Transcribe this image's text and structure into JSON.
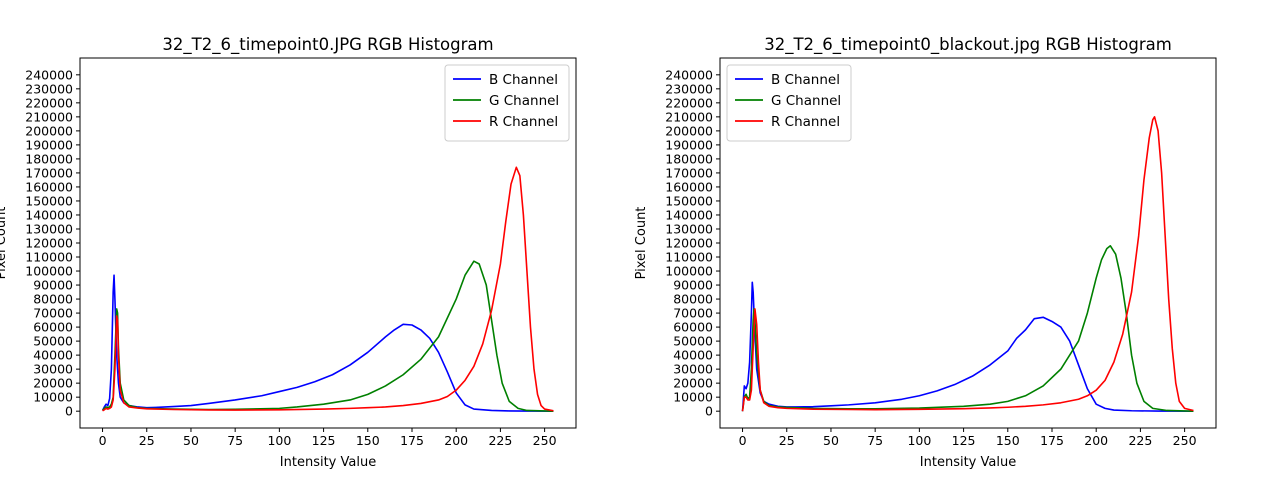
{
  "chart_data": [
    {
      "type": "line",
      "title": "32_T2_6_timepoint0.JPG RGB Histogram",
      "xlabel": "Intensity Value",
      "ylabel": "Pixel Count",
      "xlim": [
        -12.75,
        267.75
      ],
      "ylim": [
        -12000,
        252000
      ],
      "xticks": [
        0,
        25,
        50,
        75,
        100,
        125,
        150,
        175,
        200,
        225,
        250
      ],
      "yticks": [
        0,
        10000,
        20000,
        30000,
        40000,
        50000,
        60000,
        70000,
        80000,
        90000,
        100000,
        110000,
        120000,
        130000,
        140000,
        150000,
        160000,
        170000,
        180000,
        190000,
        200000,
        210000,
        220000,
        230000,
        240000
      ],
      "grid": false,
      "legend": "top-right",
      "series": [
        {
          "name": "B Channel",
          "color": "#0000ff",
          "points": [
            [
              0,
              500
            ],
            [
              1,
              3000
            ],
            [
              2,
              5000
            ],
            [
              3,
              4000
            ],
            [
              4,
              9000
            ],
            [
              5,
              30000
            ],
            [
              6,
              85000
            ],
            [
              6.5,
              97000
            ],
            [
              7,
              80000
            ],
            [
              8,
              40000
            ],
            [
              9,
              20000
            ],
            [
              10,
              10000
            ],
            [
              12,
              6000
            ],
            [
              15,
              4000
            ],
            [
              20,
              3000
            ],
            [
              25,
              2500
            ],
            [
              30,
              2700
            ],
            [
              40,
              3300
            ],
            [
              50,
              4000
            ],
            [
              60,
              5500
            ],
            [
              75,
              8000
            ],
            [
              90,
              11000
            ],
            [
              100,
              14000
            ],
            [
              110,
              17000
            ],
            [
              120,
              21000
            ],
            [
              130,
              26000
            ],
            [
              140,
              33000
            ],
            [
              150,
              42000
            ],
            [
              160,
              53000
            ],
            [
              165,
              58000
            ],
            [
              170,
              62000
            ],
            [
              175,
              61500
            ],
            [
              180,
              58000
            ],
            [
              185,
              52000
            ],
            [
              190,
              42000
            ],
            [
              195,
              28000
            ],
            [
              200,
              13000
            ],
            [
              205,
              4500
            ],
            [
              210,
              1500
            ],
            [
              220,
              500
            ],
            [
              230,
              200
            ],
            [
              240,
              100
            ],
            [
              255,
              0
            ]
          ]
        },
        {
          "name": "G Channel",
          "color": "#008000",
          "points": [
            [
              0,
              500
            ],
            [
              1,
              2000
            ],
            [
              2,
              3000
            ],
            [
              3,
              2500
            ],
            [
              4,
              3000
            ],
            [
              5,
              5000
            ],
            [
              6,
              10000
            ],
            [
              7,
              40000
            ],
            [
              8,
              73000
            ],
            [
              8.5,
              70000
            ],
            [
              9,
              45000
            ],
            [
              10,
              20000
            ],
            [
              12,
              8000
            ],
            [
              15,
              4000
            ],
            [
              20,
              2500
            ],
            [
              25,
              2000
            ],
            [
              40,
              1500
            ],
            [
              60,
              1200
            ],
            [
              75,
              1300
            ],
            [
              100,
              2000
            ],
            [
              110,
              3000
            ],
            [
              125,
              5000
            ],
            [
              140,
              8000
            ],
            [
              150,
              12000
            ],
            [
              160,
              18000
            ],
            [
              170,
              26000
            ],
            [
              180,
              37000
            ],
            [
              190,
              53000
            ],
            [
              200,
              80000
            ],
            [
              205,
              97000
            ],
            [
              210,
              107000
            ],
            [
              213,
              105000
            ],
            [
              217,
              90000
            ],
            [
              220,
              65000
            ],
            [
              223,
              40000
            ],
            [
              226,
              20000
            ],
            [
              230,
              7000
            ],
            [
              235,
              2000
            ],
            [
              240,
              500
            ],
            [
              255,
              0
            ]
          ]
        },
        {
          "name": "R Channel",
          "color": "#ff0000",
          "points": [
            [
              0,
              300
            ],
            [
              1,
              1000
            ],
            [
              2,
              2000
            ],
            [
              3,
              1500
            ],
            [
              4,
              2000
            ],
            [
              5,
              3000
            ],
            [
              6,
              8000
            ],
            [
              7,
              30000
            ],
            [
              8,
              68000
            ],
            [
              8.5,
              65000
            ],
            [
              9,
              40000
            ],
            [
              10,
              15000
            ],
            [
              12,
              6000
            ],
            [
              15,
              3000
            ],
            [
              20,
              2200
            ],
            [
              25,
              1700
            ],
            [
              40,
              1200
            ],
            [
              60,
              900
            ],
            [
              75,
              800
            ],
            [
              100,
              1000
            ],
            [
              125,
              1500
            ],
            [
              140,
              2000
            ],
            [
              150,
              2500
            ],
            [
              160,
              3000
            ],
            [
              170,
              4000
            ],
            [
              180,
              5500
            ],
            [
              190,
              8000
            ],
            [
              195,
              10500
            ],
            [
              200,
              15000
            ],
            [
              205,
              22000
            ],
            [
              210,
              32000
            ],
            [
              215,
              48000
            ],
            [
              220,
              72000
            ],
            [
              225,
              105000
            ],
            [
              228,
              135000
            ],
            [
              231,
              162000
            ],
            [
              234,
              174000
            ],
            [
              236,
              168000
            ],
            [
              238,
              140000
            ],
            [
              240,
              100000
            ],
            [
              242,
              60000
            ],
            [
              244,
              30000
            ],
            [
              246,
              12000
            ],
            [
              248,
              4000
            ],
            [
              250,
              1500
            ],
            [
              255,
              300
            ]
          ]
        }
      ]
    },
    {
      "type": "line",
      "title": "32_T2_6_timepoint0_blackout.jpg RGB Histogram",
      "xlabel": "Intensity Value",
      "ylabel": "Pixel Count",
      "xlim": [
        -12.75,
        267.75
      ],
      "ylim": [
        -12000,
        252000
      ],
      "xticks": [
        0,
        25,
        50,
        75,
        100,
        125,
        150,
        175,
        200,
        225,
        250
      ],
      "yticks": [
        0,
        10000,
        20000,
        30000,
        40000,
        50000,
        60000,
        70000,
        80000,
        90000,
        100000,
        110000,
        120000,
        130000,
        140000,
        150000,
        160000,
        170000,
        180000,
        190000,
        200000,
        210000,
        220000,
        230000,
        240000
      ],
      "grid": false,
      "legend": "top-left",
      "series": [
        {
          "name": "B Channel",
          "color": "#0000ff",
          "points": [
            [
              0,
              0
            ],
            [
              1,
              18000
            ],
            [
              2,
              16000
            ],
            [
              3,
              20000
            ],
            [
              4,
              35000
            ],
            [
              5,
              70000
            ],
            [
              5.5,
              92000
            ],
            [
              6,
              85000
            ],
            [
              7,
              55000
            ],
            [
              8,
              30000
            ],
            [
              10,
              13000
            ],
            [
              12,
              7000
            ],
            [
              15,
              5000
            ],
            [
              20,
              3500
            ],
            [
              25,
              3000
            ],
            [
              30,
              3000
            ],
            [
              40,
              3200
            ],
            [
              50,
              3800
            ],
            [
              60,
              4500
            ],
            [
              75,
              6000
            ],
            [
              90,
              8500
            ],
            [
              100,
              11000
            ],
            [
              110,
              14500
            ],
            [
              120,
              19000
            ],
            [
              130,
              25000
            ],
            [
              140,
              33000
            ],
            [
              150,
              43000
            ],
            [
              155,
              52000
            ],
            [
              160,
              58000
            ],
            [
              165,
              66000
            ],
            [
              170,
              67000
            ],
            [
              175,
              64000
            ],
            [
              180,
              60000
            ],
            [
              185,
              50000
            ],
            [
              190,
              33000
            ],
            [
              195,
              16000
            ],
            [
              200,
              5000
            ],
            [
              205,
              2000
            ],
            [
              210,
              800
            ],
            [
              220,
              300
            ],
            [
              235,
              100
            ],
            [
              255,
              0
            ]
          ]
        },
        {
          "name": "G Channel",
          "color": "#008000",
          "points": [
            [
              0,
              0
            ],
            [
              1,
              10000
            ],
            [
              2,
              12000
            ],
            [
              3,
              9000
            ],
            [
              4,
              10000
            ],
            [
              5,
              30000
            ],
            [
              6,
              65000
            ],
            [
              6.5,
              73000
            ],
            [
              7,
              65000
            ],
            [
              8,
              40000
            ],
            [
              10,
              15000
            ],
            [
              12,
              7000
            ],
            [
              15,
              4000
            ],
            [
              20,
              3000
            ],
            [
              25,
              2700
            ],
            [
              40,
              2000
            ],
            [
              60,
              1700
            ],
            [
              75,
              1700
            ],
            [
              100,
              2200
            ],
            [
              125,
              3500
            ],
            [
              140,
              5000
            ],
            [
              150,
              7000
            ],
            [
              160,
              11000
            ],
            [
              170,
              18000
            ],
            [
              180,
              30000
            ],
            [
              190,
              50000
            ],
            [
              195,
              70000
            ],
            [
              200,
              95000
            ],
            [
              203,
              108000
            ],
            [
              206,
              116000
            ],
            [
              208,
              118000
            ],
            [
              211,
              112000
            ],
            [
              214,
              95000
            ],
            [
              217,
              70000
            ],
            [
              220,
              40000
            ],
            [
              223,
              20000
            ],
            [
              227,
              7000
            ],
            [
              232,
              2000
            ],
            [
              240,
              500
            ],
            [
              255,
              0
            ]
          ]
        },
        {
          "name": "R Channel",
          "color": "#ff0000",
          "points": [
            [
              0,
              0
            ],
            [
              1,
              10000
            ],
            [
              2,
              10000
            ],
            [
              3,
              8000
            ],
            [
              4,
              8000
            ],
            [
              5,
              15000
            ],
            [
              6,
              45000
            ],
            [
              7,
              73000
            ],
            [
              8,
              62000
            ],
            [
              9,
              35000
            ],
            [
              10,
              15000
            ],
            [
              12,
              6000
            ],
            [
              15,
              3500
            ],
            [
              20,
              2500
            ],
            [
              25,
              2000
            ],
            [
              40,
              1400
            ],
            [
              60,
              1200
            ],
            [
              75,
              1100
            ],
            [
              100,
              1300
            ],
            [
              125,
              1800
            ],
            [
              140,
              2300
            ],
            [
              150,
              2800
            ],
            [
              160,
              3500
            ],
            [
              170,
              4500
            ],
            [
              180,
              6000
            ],
            [
              190,
              8500
            ],
            [
              195,
              11000
            ],
            [
              200,
              15000
            ],
            [
              205,
              22000
            ],
            [
              210,
              35000
            ],
            [
              215,
              55000
            ],
            [
              220,
              85000
            ],
            [
              224,
              125000
            ],
            [
              227,
              165000
            ],
            [
              230,
              195000
            ],
            [
              232,
              208000
            ],
            [
              233,
              210000
            ],
            [
              235,
              200000
            ],
            [
              237,
              170000
            ],
            [
              239,
              125000
            ],
            [
              241,
              80000
            ],
            [
              243,
              45000
            ],
            [
              245,
              20000
            ],
            [
              247,
              7000
            ],
            [
              250,
              2000
            ],
            [
              255,
              500
            ]
          ]
        }
      ]
    }
  ]
}
